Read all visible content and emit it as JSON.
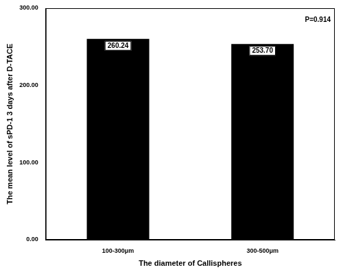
{
  "chart_data": {
    "type": "bar",
    "x_label": "The diameter of Callispheres",
    "y_label": "The mean level of sPD-1 3 days after D-TACE",
    "annotation": "P=0.914",
    "categories": [
      "100-300μm",
      "300-500μm"
    ],
    "values": [
      260.24,
      253.7
    ],
    "value_labels": [
      "260.24",
      "253.70"
    ],
    "color": "#000000",
    "ylim": [
      0,
      300
    ],
    "yticks": [
      {
        "value": 0,
        "label": "0.00"
      },
      {
        "value": 100,
        "label": "100.00"
      },
      {
        "value": 200,
        "label": "200.00"
      },
      {
        "value": 300,
        "label": "300.00"
      }
    ],
    "grid": false,
    "data_labels": true
  }
}
